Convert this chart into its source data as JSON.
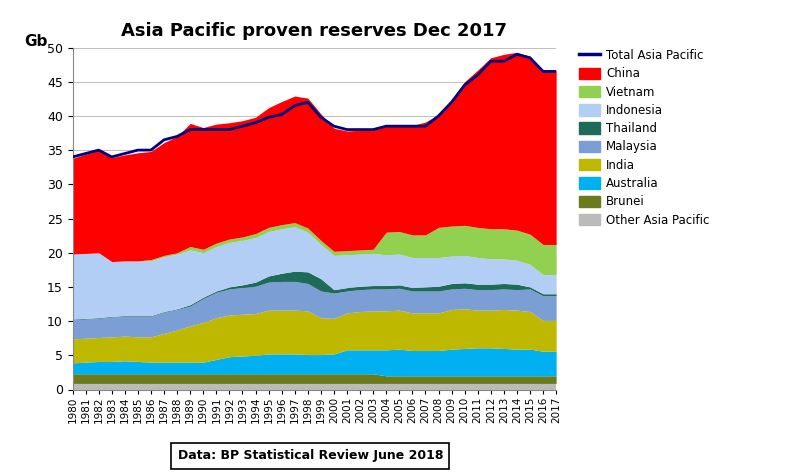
{
  "title": "Asia Pacific proven reserves Dec 2017",
  "ylabel": "Gb",
  "years": [
    1980,
    1981,
    1982,
    1983,
    1984,
    1985,
    1986,
    1987,
    1988,
    1989,
    1990,
    1991,
    1992,
    1993,
    1994,
    1995,
    1996,
    1997,
    1998,
    1999,
    2000,
    2001,
    2002,
    2003,
    2004,
    2005,
    2006,
    2007,
    2008,
    2009,
    2010,
    2011,
    2012,
    2013,
    2014,
    2015,
    2016,
    2017
  ],
  "series": {
    "Other Asia Pacific": [
      0.9,
      0.9,
      0.9,
      0.9,
      0.9,
      0.9,
      0.9,
      0.9,
      0.9,
      0.9,
      0.9,
      0.9,
      0.9,
      0.9,
      0.9,
      0.9,
      0.9,
      0.9,
      0.9,
      0.9,
      0.9,
      0.9,
      0.9,
      0.9,
      0.9,
      0.9,
      0.9,
      0.9,
      0.9,
      0.9,
      0.9,
      0.9,
      0.9,
      0.9,
      0.9,
      0.9,
      0.9,
      0.9
    ],
    "Brunei": [
      1.4,
      1.4,
      1.4,
      1.4,
      1.4,
      1.4,
      1.4,
      1.4,
      1.4,
      1.4,
      1.4,
      1.4,
      1.4,
      1.4,
      1.4,
      1.4,
      1.4,
      1.4,
      1.4,
      1.4,
      1.4,
      1.4,
      1.4,
      1.4,
      1.1,
      1.1,
      1.1,
      1.1,
      1.1,
      1.1,
      1.1,
      1.1,
      1.1,
      1.1,
      1.1,
      1.1,
      1.1,
      1.1
    ],
    "Australia": [
      1.6,
      1.7,
      1.8,
      1.8,
      1.9,
      1.8,
      1.7,
      1.7,
      1.7,
      1.7,
      1.7,
      2.1,
      2.5,
      2.6,
      2.7,
      2.9,
      2.9,
      2.9,
      2.8,
      2.8,
      2.9,
      3.5,
      3.5,
      3.5,
      3.8,
      3.9,
      3.7,
      3.7,
      3.7,
      3.9,
      4.0,
      4.1,
      4.1,
      4.0,
      3.9,
      3.9,
      3.6,
      3.6
    ],
    "India": [
      3.5,
      3.5,
      3.5,
      3.6,
      3.6,
      3.6,
      3.7,
      4.2,
      4.7,
      5.3,
      5.8,
      6.1,
      6.1,
      6.1,
      6.1,
      6.4,
      6.4,
      6.4,
      6.4,
      5.4,
      5.2,
      5.4,
      5.6,
      5.7,
      5.7,
      5.7,
      5.5,
      5.5,
      5.5,
      5.8,
      5.8,
      5.5,
      5.5,
      5.7,
      5.7,
      5.5,
      4.5,
      4.5
    ],
    "Malaysia": [
      2.8,
      2.8,
      2.8,
      2.9,
      2.9,
      3.0,
      3.0,
      3.1,
      3.0,
      2.9,
      3.5,
      3.7,
      3.8,
      3.9,
      4.0,
      4.1,
      4.2,
      4.2,
      4.0,
      3.9,
      3.7,
      3.2,
      3.2,
      3.2,
      3.2,
      3.2,
      3.2,
      3.2,
      3.2,
      3.0,
      3.0,
      3.0,
      3.0,
      3.0,
      3.0,
      3.3,
      3.6,
      3.6
    ],
    "Thailand": [
      0.1,
      0.1,
      0.1,
      0.1,
      0.1,
      0.1,
      0.1,
      0.1,
      0.1,
      0.2,
      0.2,
      0.2,
      0.3,
      0.4,
      0.6,
      0.9,
      1.2,
      1.5,
      1.7,
      1.8,
      0.5,
      0.5,
      0.5,
      0.5,
      0.5,
      0.5,
      0.5,
      0.6,
      0.7,
      0.8,
      0.8,
      0.8,
      0.8,
      0.8,
      0.8,
      0.3,
      0.3,
      0.3
    ],
    "Indonesia": [
      9.5,
      9.5,
      9.5,
      8.0,
      8.0,
      8.0,
      8.0,
      8.0,
      8.0,
      8.0,
      6.5,
      6.5,
      6.5,
      6.5,
      6.5,
      6.5,
      6.5,
      6.5,
      5.8,
      5.0,
      5.0,
      4.8,
      4.7,
      4.7,
      4.5,
      4.5,
      4.4,
      4.3,
      4.2,
      4.0,
      4.0,
      3.9,
      3.7,
      3.6,
      3.5,
      3.3,
      2.8,
      2.8
    ],
    "Vietnam": [
      0.0,
      0.0,
      0.0,
      0.0,
      0.0,
      0.0,
      0.2,
      0.2,
      0.2,
      0.5,
      0.5,
      0.5,
      0.5,
      0.5,
      0.6,
      0.6,
      0.6,
      0.6,
      0.6,
      0.6,
      0.6,
      0.6,
      0.6,
      0.6,
      3.3,
      3.3,
      3.3,
      3.3,
      4.4,
      4.4,
      4.4,
      4.4,
      4.4,
      4.4,
      4.4,
      4.4,
      4.4,
      4.4
    ],
    "China": [
      14.0,
      14.5,
      15.0,
      15.2,
      15.5,
      15.8,
      15.8,
      16.5,
      17.0,
      18.0,
      17.8,
      17.4,
      17.0,
      17.0,
      17.0,
      17.5,
      18.0,
      18.5,
      19.0,
      18.5,
      18.0,
      17.5,
      17.5,
      17.5,
      15.5,
      15.5,
      16.0,
      16.5,
      16.5,
      18.5,
      21.0,
      23.0,
      25.0,
      25.5,
      26.0,
      26.0,
      25.5,
      25.5
    ]
  },
  "total": [
    34.0,
    34.5,
    35.0,
    34.0,
    34.5,
    35.0,
    35.0,
    36.5,
    37.0,
    38.0,
    38.0,
    38.0,
    38.0,
    38.5,
    39.0,
    39.8,
    40.2,
    41.5,
    42.0,
    39.8,
    38.5,
    38.0,
    38.0,
    38.0,
    38.5,
    38.5,
    38.5,
    38.5,
    40.0,
    42.0,
    44.5,
    46.0,
    48.0,
    48.0,
    49.0,
    48.5,
    46.5,
    46.5
  ],
  "colors": {
    "Other Asia Pacific": "#bbbbbb",
    "Brunei": "#6b7a1a",
    "Australia": "#00b0f0",
    "India": "#bfb800",
    "Malaysia": "#7b9fd4",
    "Thailand": "#1f6b5a",
    "Indonesia": "#b3cef5",
    "Vietnam": "#92d050",
    "China": "#ff0000"
  },
  "total_color": "#000080",
  "ylim": [
    0,
    50
  ],
  "yticks": [
    0,
    5,
    10,
    15,
    20,
    25,
    30,
    35,
    40,
    45,
    50
  ],
  "annotation": "Data: BP Statistical Review June 2018",
  "background_color": "#ffffff"
}
